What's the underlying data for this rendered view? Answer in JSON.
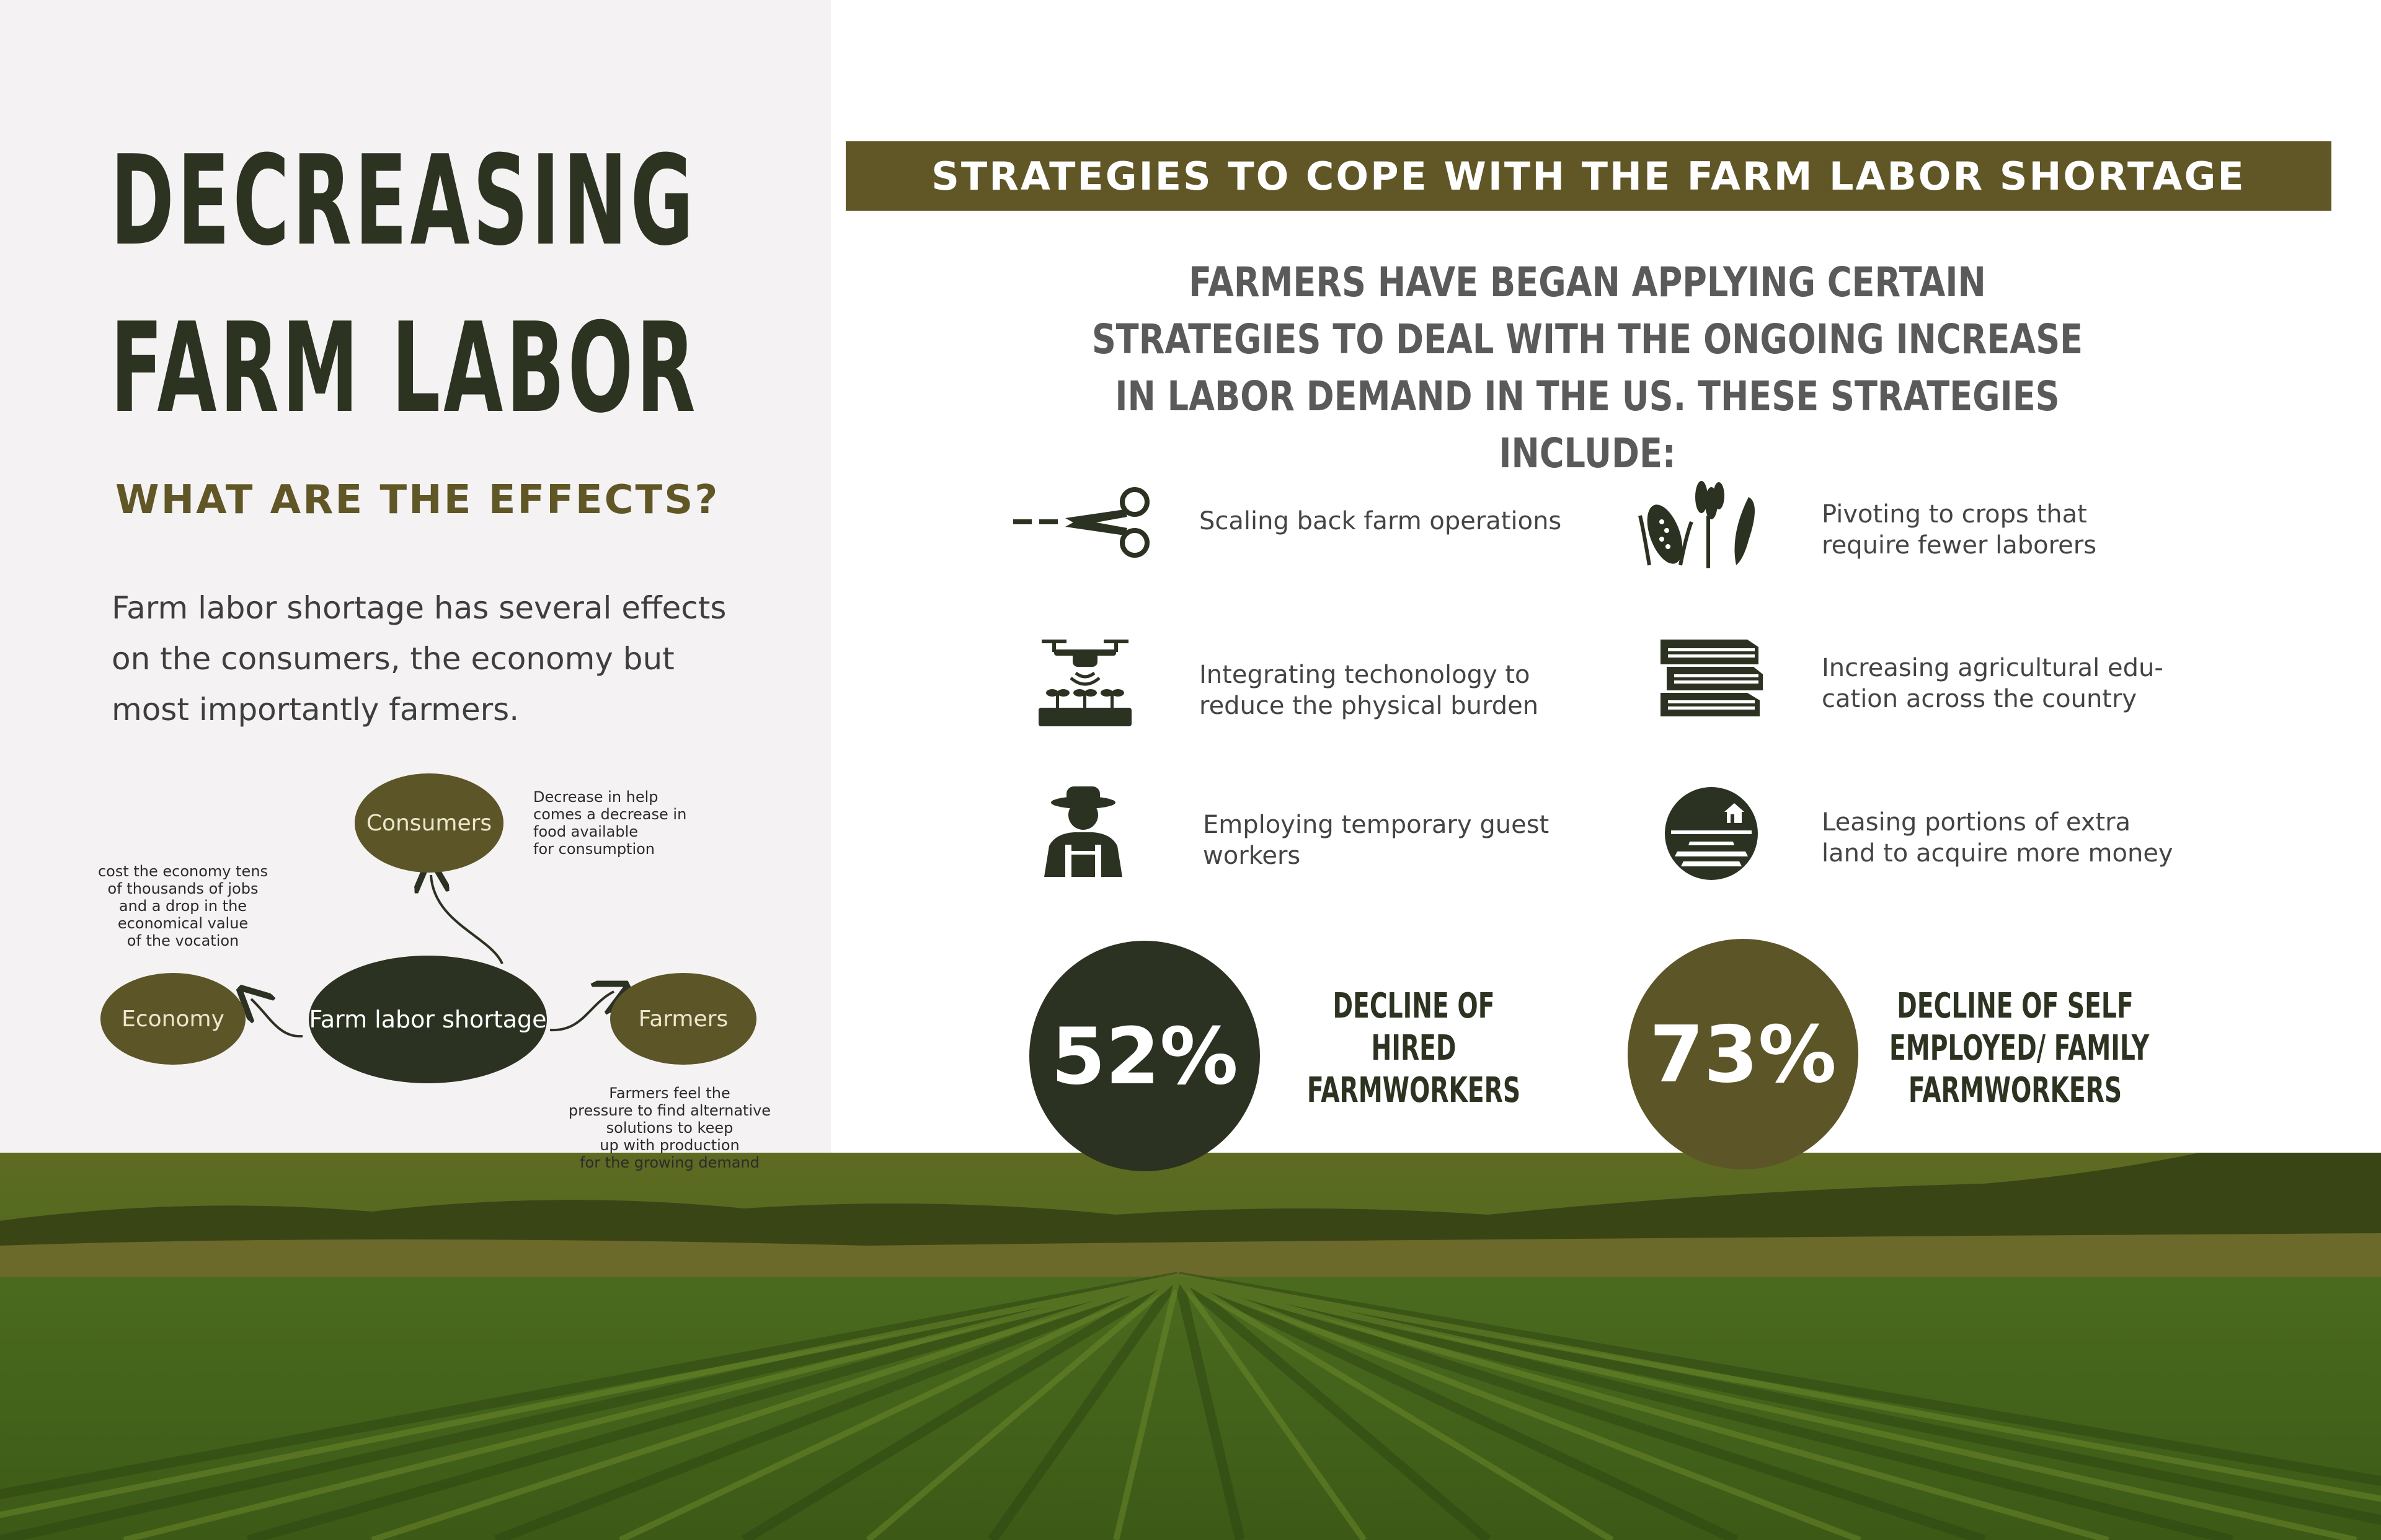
{
  "header": {
    "title_line1": "DECREASING",
    "title_line2": "FARM LABOR",
    "subtitle": "WHAT ARE THE EFFECTS?",
    "intro": "Farm labor shortage has several effects on the consumers, the economy but most importantly farmers."
  },
  "diagram": {
    "center": "Farm labor shortage",
    "consumers": "Consumers",
    "economy": "Economy",
    "farmers": "Farmers",
    "consumers_note": [
      "Decrease in help",
      "comes a decrease in",
      "food available",
      "for consumption"
    ],
    "economy_note": [
      "cost the economy tens",
      "of thousands of jobs",
      "and a drop in the",
      "economical value",
      "of the vocation"
    ],
    "farmers_note": [
      "Farmers feel the",
      "pressure to find alternative",
      "solutions to keep",
      "up with production",
      "for the growing demand"
    ]
  },
  "strategies_section": {
    "banner": "STRATEGIES TO COPE WITH THE FARM LABOR SHORTAGE",
    "lead": "FARMERS HAVE BEGAN APPLYING CERTAIN STRATEGIES TO DEAL WITH THE ONGOING INCREASE IN LABOR DEMAND IN THE US. THESE STRATEGIES INCLUDE:",
    "items": [
      {
        "icon": "scissors-icon",
        "line1": "Scaling back farm operations",
        "line2": ""
      },
      {
        "icon": "crops-icon",
        "line1": "Pivoting to crops that",
        "line2": "require fewer laborers"
      },
      {
        "icon": "drone-icon",
        "line1": "Integrating techonology to",
        "line2": "reduce the physical burden"
      },
      {
        "icon": "books-icon",
        "line1": "Increasing agricultural edu-",
        "line2": "cation across the country"
      },
      {
        "icon": "farmer-icon",
        "line1": "Employing temporary guest",
        "line2": "workers"
      },
      {
        "icon": "farmland-icon",
        "line1": "Leasing portions of extra",
        "line2": "land to acquire more money"
      }
    ]
  },
  "stats": [
    {
      "value": "52%",
      "label_lines": [
        "DECLINE OF",
        "HIRED",
        "FARMWORKERS"
      ],
      "color": "#2c3221"
    },
    {
      "value": "73%",
      "label_lines": [
        "DECLINE OF SELF",
        "EMPLOYED/ FAMILY",
        "FARMWORKERS"
      ],
      "color": "#5c5528"
    }
  ],
  "colors": {
    "dark": "#2c3221",
    "olive": "#605626",
    "panel": "#f4f2f3"
  }
}
